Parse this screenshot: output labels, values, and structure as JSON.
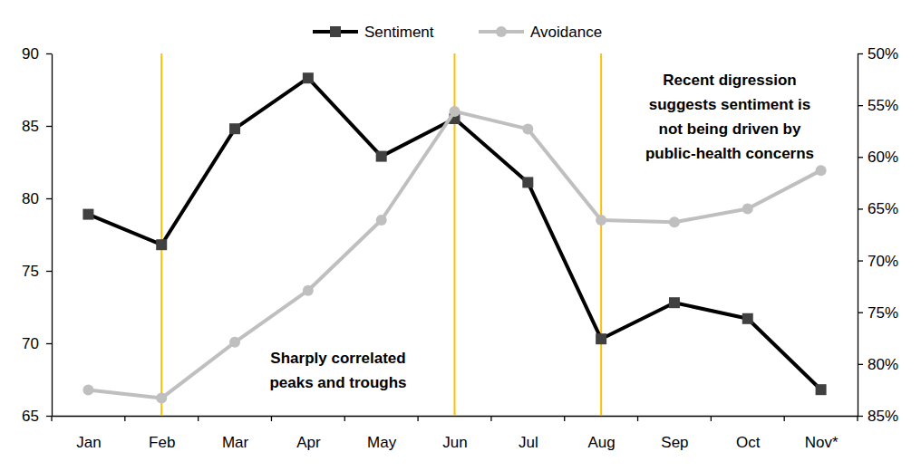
{
  "chart_data": {
    "type": "line",
    "categories": [
      "Jan",
      "Feb",
      "Mar",
      "Apr",
      "May",
      "Jun",
      "Jul",
      "Aug",
      "Sep",
      "Oct",
      "Nov*"
    ],
    "series": [
      {
        "name": "Sentiment",
        "color": "#000000",
        "marker": "square",
        "line_style": "solid",
        "values": [
          78.9,
          76.8,
          84.8,
          88.3,
          82.9,
          85.5,
          81.1,
          70.3,
          72.8,
          71.7,
          66.8
        ]
      },
      {
        "name": "Avoidance",
        "color": "#bfbfbf",
        "marker": "circle",
        "line_style": "solid",
        "axis": "y2",
        "values": [
          82.5,
          83.3,
          77.9,
          72.9,
          66.1,
          55.6,
          57.3,
          66.1,
          66.3,
          65.0,
          61.3
        ]
      }
    ],
    "ylim": [
      65,
      90
    ],
    "yticks": [
      65,
      70,
      75,
      80,
      85,
      90
    ],
    "y2lim": [
      85,
      50
    ],
    "y2ticks": [
      {
        "value": 85,
        "label": "85%"
      },
      {
        "value": 80,
        "label": "80%"
      },
      {
        "value": 75,
        "label": "75%"
      },
      {
        "value": 70,
        "label": "70%"
      },
      {
        "value": 65,
        "label": "65%"
      },
      {
        "value": 60,
        "label": "60%"
      },
      {
        "value": 55,
        "label": "55%"
      },
      {
        "value": 50,
        "label": "50%"
      }
    ],
    "vlines": [
      "Feb",
      "Jun",
      "Aug"
    ],
    "annotations": [
      {
        "lines": [
          "Recent digression",
          "suggests sentiment is",
          "not being driven by",
          "public-health concerns"
        ]
      },
      {
        "lines": [
          "Sharply correlated",
          "peaks and troughs"
        ]
      }
    ],
    "legend": "top",
    "grid": false
  }
}
